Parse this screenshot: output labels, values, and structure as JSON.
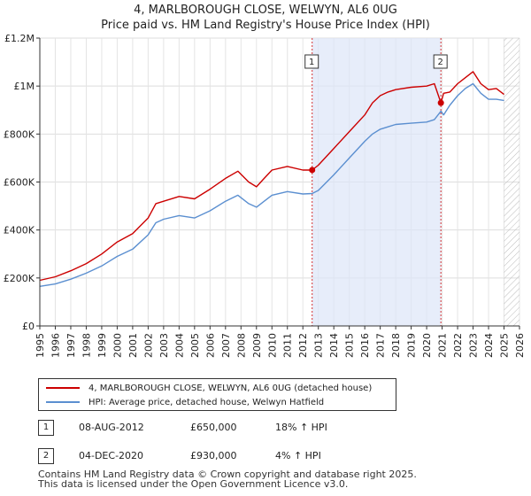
{
  "title": "4, MARLBOROUGH CLOSE, WELWYN, AL6 0UG",
  "subtitle": "Price paid vs. HM Land Registry's House Price Index (HPI)",
  "chart_data": {
    "type": "line",
    "xlim": [
      1995,
      2026
    ],
    "ylim": [
      0,
      1200000
    ],
    "y_ticks": [
      0,
      200000,
      400000,
      600000,
      800000,
      1000000,
      1200000
    ],
    "y_tick_labels": [
      "£0",
      "£200K",
      "£400K",
      "£600K",
      "£800K",
      "£1M",
      "£1.2M"
    ],
    "x_ticks": [
      1995,
      1996,
      1997,
      1998,
      1999,
      2000,
      2001,
      2002,
      2003,
      2004,
      2005,
      2006,
      2007,
      2008,
      2009,
      2010,
      2011,
      2012,
      2013,
      2014,
      2015,
      2016,
      2017,
      2018,
      2019,
      2020,
      2021,
      2022,
      2023,
      2024,
      2025,
      2026
    ],
    "shaded_ranges": [
      [
        2012.6,
        2020.92
      ]
    ],
    "hatched_from": 2025.0,
    "series": [
      {
        "name": "4, MARLBOROUGH CLOSE, WELWYN, AL6 0UG (detached house)",
        "color": "#cc0000",
        "x": [
          1995.0,
          1996.0,
          1997.0,
          1998.0,
          1999.0,
          2000.0,
          2001.0,
          2002.0,
          2002.5,
          2003.0,
          2004.0,
          2005.0,
          2006.0,
          2007.0,
          2007.8,
          2008.5,
          2009.0,
          2009.5,
          2010.0,
          2011.0,
          2012.0,
          2012.6,
          2013.0,
          2014.0,
          2015.0,
          2016.0,
          2016.5,
          2017.0,
          2017.5,
          2018.0,
          2019.0,
          2020.0,
          2020.5,
          2020.92,
          2021.1,
          2021.5,
          2022.0,
          2022.5,
          2023.0,
          2023.5,
          2024.0,
          2024.5,
          2025.0
        ],
        "y": [
          190000,
          205000,
          230000,
          260000,
          300000,
          350000,
          385000,
          450000,
          510000,
          520000,
          540000,
          530000,
          570000,
          615000,
          645000,
          600000,
          580000,
          615000,
          650000,
          665000,
          650000,
          650000,
          670000,
          740000,
          810000,
          880000,
          930000,
          960000,
          975000,
          985000,
          995000,
          1000000,
          1010000,
          930000,
          970000,
          975000,
          1010000,
          1035000,
          1060000,
          1010000,
          985000,
          990000,
          965000
        ]
      },
      {
        "name": "HPI: Average price, detached house, Welwyn Hatfield",
        "color": "#5b8fd0",
        "x": [
          1995.0,
          1996.0,
          1997.0,
          1998.0,
          1999.0,
          2000.0,
          2001.0,
          2002.0,
          2002.5,
          2003.0,
          2004.0,
          2005.0,
          2006.0,
          2007.0,
          2007.8,
          2008.5,
          2009.0,
          2009.5,
          2010.0,
          2011.0,
          2012.0,
          2012.6,
          2013.0,
          2014.0,
          2015.0,
          2016.0,
          2016.5,
          2017.0,
          2017.5,
          2018.0,
          2019.0,
          2020.0,
          2020.5,
          2020.92,
          2021.1,
          2021.5,
          2022.0,
          2022.5,
          2023.0,
          2023.5,
          2024.0,
          2024.5,
          2025.0
        ],
        "y": [
          165000,
          175000,
          195000,
          220000,
          250000,
          290000,
          320000,
          380000,
          430000,
          445000,
          460000,
          450000,
          480000,
          520000,
          545000,
          510000,
          495000,
          520000,
          545000,
          560000,
          550000,
          552000,
          565000,
          630000,
          700000,
          770000,
          800000,
          820000,
          830000,
          840000,
          845000,
          850000,
          860000,
          895000,
          880000,
          920000,
          960000,
          990000,
          1010000,
          970000,
          945000,
          945000,
          940000
        ]
      }
    ],
    "annotations": [
      {
        "label": "1",
        "x": 2012.6,
        "y": 650000
      },
      {
        "label": "2",
        "x": 2020.92,
        "y": 930000
      }
    ]
  },
  "legend": {
    "items": [
      {
        "label": "4, MARLBOROUGH CLOSE, WELWYN, AL6 0UG (detached house)",
        "color": "#cc0000"
      },
      {
        "label": "HPI: Average price, detached house, Welwyn Hatfield",
        "color": "#5b8fd0"
      }
    ]
  },
  "sales": [
    {
      "num": "1",
      "date": "08-AUG-2012",
      "price": "£650,000",
      "hpi": "18% ↑ HPI"
    },
    {
      "num": "2",
      "date": "04-DEC-2020",
      "price": "£930,000",
      "hpi": "4% ↑ HPI"
    }
  ],
  "footer": {
    "line1": "Contains HM Land Registry data © Crown copyright and database right 2025.",
    "line2": "This data is licensed under the Open Government Licence v3.0."
  }
}
